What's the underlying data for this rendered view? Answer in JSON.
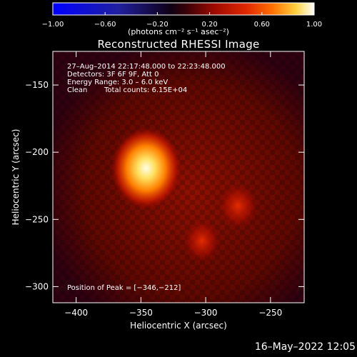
{
  "colorbar": {
    "ticks": [
      "−1.00",
      "−0.60",
      "−0.20",
      "0.20",
      "0.60",
      "1.00"
    ],
    "unit_label": "(photons cm⁻² s⁻¹ asec⁻²)"
  },
  "chart_data": {
    "type": "heatmap",
    "title": "Reconstructed RHESSI Image",
    "xlabel": "Heliocentric X (arcsec)",
    "ylabel": "Heliocentric Y (arcsec)",
    "xlim": [
      -418,
      -224
    ],
    "ylim": [
      -312,
      -125
    ],
    "x_ticks": [
      -400,
      -350,
      -300,
      -250
    ],
    "x_tick_labels": [
      "−400",
      "−350",
      "−300",
      "−250"
    ],
    "y_ticks": [
      -150,
      -200,
      -250,
      -300
    ],
    "y_tick_labels": [
      "−150",
      "−200",
      "−250",
      "−300"
    ],
    "colorbar_range": [
      -1.0,
      1.0
    ],
    "colormap": "heat (blue-black-red-yellow-white)",
    "sources": [
      {
        "x": -346,
        "y": -212,
        "relative_intensity": 1.0
      },
      {
        "x": -275,
        "y": -240,
        "relative_intensity": 0.45
      },
      {
        "x": -303,
        "y": -266,
        "relative_intensity": 0.4
      }
    ],
    "annotations": {
      "time_range": "27–Aug–2014 22:17:48.000 to 22:23:48.000",
      "detectors": "Detectors: 3F 6F 9F, Att 0",
      "energy_range": "Energy Range: 3.0 – 6.0 keV",
      "clean_label": "Clean",
      "total_counts": "Total counts: 6.15E+04",
      "peak_position": "Position of Peak = [−346,−212]"
    }
  },
  "footer": {
    "timestamp": "16–May–2022 12:05"
  },
  "colors": {
    "background": "#000000",
    "axes": "#ffffff",
    "peak": "#ffffe0",
    "mid": "#c01000"
  }
}
